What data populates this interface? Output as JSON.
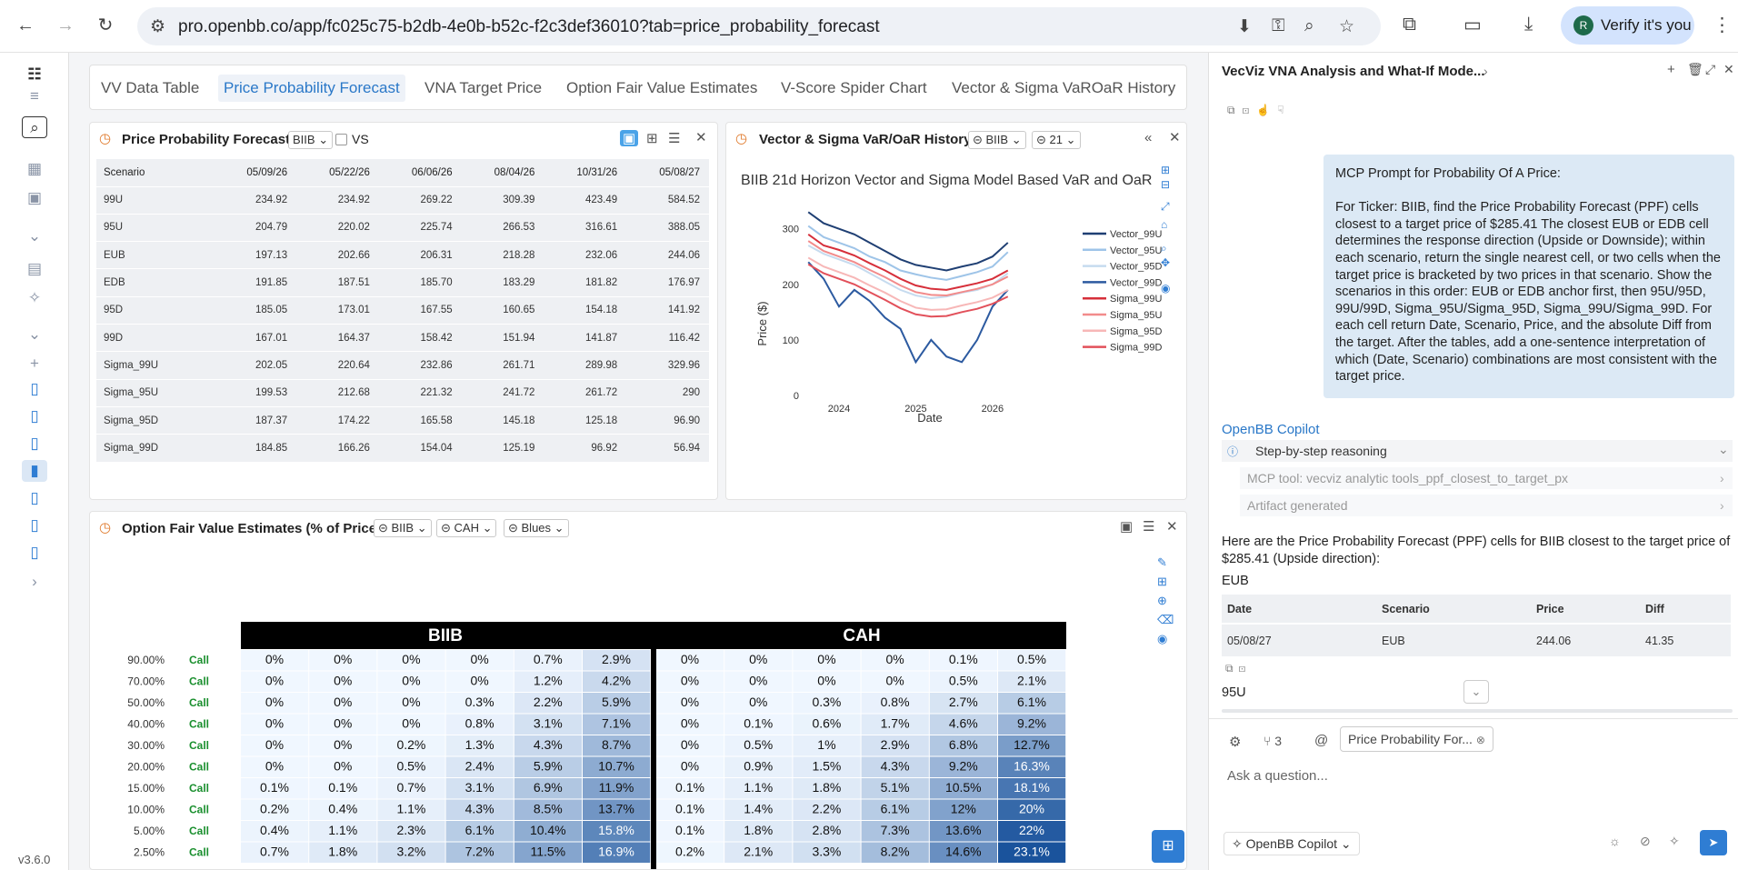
{
  "browser": {
    "url": "pro.openbb.co/app/fc025c75-b2db-4e0b-b52c-f2c3def36010?tab=price_probability_forecast",
    "verify_label": "Verify it's you",
    "avatar_letter": "R"
  },
  "app": {
    "version": "v3.6.0"
  },
  "tabs": [
    {
      "label": "VV Data Table"
    },
    {
      "label": "Price Probability Forecast"
    },
    {
      "label": "VNA Target Price"
    },
    {
      "label": "Option Fair Value Estimates"
    },
    {
      "label": "V-Score Spider Chart"
    },
    {
      "label": "Vector & Sigma VaROaR History"
    }
  ],
  "ppf": {
    "title": "Price Probability Forecast",
    "ticker": "BIIB",
    "vs_label": "VS",
    "columns": [
      "Scenario",
      "05/09/26",
      "05/22/26",
      "06/06/26",
      "08/04/26",
      "10/31/26",
      "05/08/27"
    ],
    "rows": [
      [
        "99U",
        "234.92",
        "234.92",
        "269.22",
        "309.39",
        "423.49",
        "584.52"
      ],
      [
        "95U",
        "204.79",
        "220.02",
        "225.74",
        "266.53",
        "316.61",
        "388.05"
      ],
      [
        "EUB",
        "197.13",
        "202.66",
        "206.31",
        "218.28",
        "232.06",
        "244.06"
      ],
      [
        "EDB",
        "191.85",
        "187.51",
        "185.70",
        "183.29",
        "181.82",
        "176.97"
      ],
      [
        "95D",
        "185.05",
        "173.01",
        "167.55",
        "160.65",
        "154.18",
        "141.92"
      ],
      [
        "99D",
        "167.01",
        "164.37",
        "158.42",
        "151.94",
        "141.87",
        "116.42"
      ],
      [
        "Sigma_99U",
        "202.05",
        "220.64",
        "232.86",
        "261.71",
        "289.98",
        "329.96"
      ],
      [
        "Sigma_95U",
        "199.53",
        "212.68",
        "221.32",
        "241.72",
        "261.72",
        "290"
      ],
      [
        "Sigma_95D",
        "187.37",
        "174.22",
        "165.58",
        "145.18",
        "125.18",
        "96.90"
      ],
      [
        "Sigma_99D",
        "184.85",
        "166.26",
        "154.04",
        "125.19",
        "96.92",
        "56.94"
      ]
    ]
  },
  "var_panel": {
    "title": "Vector & Sigma VaR/OaR History",
    "ticker": "BIIB",
    "horizon": "21"
  },
  "chart_data": {
    "type": "line",
    "title": "BIIB 21d Horizon Vector and Sigma Model Based VaR and OaR",
    "xlabel": "Date",
    "ylabel": "Price ($)",
    "x_ticks": [
      "2024",
      "2025",
      "2026"
    ],
    "y_ticks": [
      0,
      100,
      200,
      300
    ],
    "ylim": [
      0,
      360
    ],
    "legend_position": "right",
    "x": [
      2023.6,
      2023.8,
      2024.0,
      2024.2,
      2024.4,
      2024.6,
      2024.8,
      2025.0,
      2025.2,
      2025.4,
      2025.6,
      2025.8,
      2026.0,
      2026.2
    ],
    "series": [
      {
        "name": "Vector_99U",
        "color": "#1f3f73",
        "values": [
          330,
          310,
          300,
          290,
          275,
          260,
          245,
          235,
          230,
          225,
          232,
          238,
          250,
          275
        ]
      },
      {
        "name": "Vector_95U",
        "color": "#9ec4e8",
        "values": [
          305,
          285,
          275,
          265,
          250,
          240,
          225,
          218,
          212,
          208,
          215,
          222,
          232,
          258
        ]
      },
      {
        "name": "Vector_95D",
        "color": "#c6dbef",
        "values": [
          270,
          255,
          245,
          235,
          220,
          205,
          190,
          180,
          175,
          178,
          185,
          190,
          200,
          220
        ]
      },
      {
        "name": "Vector_99D",
        "color": "#2c5aa0",
        "values": [
          240,
          210,
          160,
          190,
          170,
          140,
          120,
          60,
          100,
          70,
          60,
          100,
          160,
          190
        ]
      },
      {
        "name": "Sigma_99U",
        "color": "#d62f3a",
        "values": [
          290,
          270,
          262,
          252,
          238,
          225,
          210,
          198,
          192,
          190,
          196,
          202,
          210,
          225
        ]
      },
      {
        "name": "Sigma_95U",
        "color": "#f28b8b",
        "values": [
          278,
          260,
          250,
          240,
          226,
          213,
          198,
          186,
          181,
          180,
          186,
          192,
          200,
          214
        ]
      },
      {
        "name": "Sigma_95D",
        "color": "#f7b7b7",
        "values": [
          248,
          232,
          222,
          212,
          198,
          185,
          170,
          158,
          154,
          155,
          162,
          168,
          176,
          190
        ]
      },
      {
        "name": "Sigma_99D",
        "color": "#e2505a",
        "values": [
          236,
          220,
          210,
          200,
          186,
          172,
          157,
          146,
          142,
          143,
          150,
          156,
          165,
          178
        ]
      }
    ]
  },
  "options": {
    "title": "Option Fair Value Estimates (% of Price)",
    "ticker1": "BIIB",
    "ticker2": "CAH",
    "colormap": "Blues",
    "header1": "BIIB",
    "header2": "CAH",
    "rows": [
      {
        "prob": "90.00%",
        "type": "Call",
        "a": [
          "0%",
          "0%",
          "0%",
          "0%",
          "0.7%",
          "2.9%"
        ],
        "b": [
          "0%",
          "0%",
          "0%",
          "0%",
          "0.1%",
          "0.5%"
        ]
      },
      {
        "prob": "70.00%",
        "type": "Call",
        "a": [
          "0%",
          "0%",
          "0%",
          "0%",
          "1.2%",
          "4.2%"
        ],
        "b": [
          "0%",
          "0%",
          "0%",
          "0%",
          "0.5%",
          "2.1%"
        ]
      },
      {
        "prob": "50.00%",
        "type": "Call",
        "a": [
          "0%",
          "0%",
          "0%",
          "0.3%",
          "2.2%",
          "5.9%"
        ],
        "b": [
          "0%",
          "0%",
          "0.3%",
          "0.8%",
          "2.7%",
          "6.1%"
        ]
      },
      {
        "prob": "40.00%",
        "type": "Call",
        "a": [
          "0%",
          "0%",
          "0%",
          "0.8%",
          "3.1%",
          "7.1%"
        ],
        "b": [
          "0%",
          "0.1%",
          "0.6%",
          "1.7%",
          "4.6%",
          "9.2%"
        ]
      },
      {
        "prob": "30.00%",
        "type": "Call",
        "a": [
          "0%",
          "0%",
          "0.2%",
          "1.3%",
          "4.3%",
          "8.7%"
        ],
        "b": [
          "0%",
          "0.5%",
          "1%",
          "2.9%",
          "6.8%",
          "12.7%"
        ]
      },
      {
        "prob": "20.00%",
        "type": "Call",
        "a": [
          "0%",
          "0%",
          "0.5%",
          "2.4%",
          "5.9%",
          "10.7%"
        ],
        "b": [
          "0%",
          "0.9%",
          "1.5%",
          "4.3%",
          "9.2%",
          "16.3%"
        ]
      },
      {
        "prob": "15.00%",
        "type": "Call",
        "a": [
          "0.1%",
          "0.1%",
          "0.7%",
          "3.1%",
          "6.9%",
          "11.9%"
        ],
        "b": [
          "0.1%",
          "1.1%",
          "1.8%",
          "5.1%",
          "10.5%",
          "18.1%"
        ]
      },
      {
        "prob": "10.00%",
        "type": "Call",
        "a": [
          "0.2%",
          "0.4%",
          "1.1%",
          "4.3%",
          "8.5%",
          "13.7%"
        ],
        "b": [
          "0.1%",
          "1.4%",
          "2.2%",
          "6.1%",
          "12%",
          "20%"
        ]
      },
      {
        "prob": "5.00%",
        "type": "Call",
        "a": [
          "0.4%",
          "1.1%",
          "2.3%",
          "6.1%",
          "10.4%",
          "15.8%"
        ],
        "b": [
          "0.1%",
          "1.8%",
          "2.8%",
          "7.3%",
          "13.6%",
          "22%"
        ]
      },
      {
        "prob": "2.50%",
        "type": "Call",
        "a": [
          "0.7%",
          "1.8%",
          "3.2%",
          "7.2%",
          "11.5%",
          "16.9%"
        ],
        "b": [
          "0.2%",
          "2.1%",
          "3.3%",
          "8.2%",
          "14.6%",
          "23.1%"
        ]
      }
    ]
  },
  "copilot": {
    "title": "VecViz VNA Analysis and What-If Mode...",
    "prompt": "MCP Prompt for Probability Of A Price:\n\nFor Ticker: BIIB, find the Price Probability Forecast (PPF) cells closest to a target price of $285.41 The closest EUB or EDB cell determines the response direction (Upside or Downside); within each scenario, return the single nearest cell, or two cells when the target price is bracketed by two prices in that scenario. Show the scenarios in this order: EUB or EDB anchor first, then 95U/95D, 99U/99D, Sigma_95U/Sigma_95D, Sigma_99U/Sigma_99D. For each cell return Date, Scenario, Price, and the absolute Diff from the target. After the tables, add a one-sentence interpretation of which (Date, Scenario) combinations are most consistent with the target price.",
    "name": "OpenBB Copilot",
    "step_reasoning": "Step-by-step reasoning",
    "step_tool": "MCP tool: vecviz analytic tools_ppf_closest_to_target_px",
    "step_artifact": "Artifact generated",
    "answer": "Here are the Price Probability Forecast (PPF) cells for BIIB closest to the target price of $285.41 (Upside direction):",
    "section1": "EUB",
    "table_headers": [
      "Date",
      "Scenario",
      "Price",
      "Diff"
    ],
    "table_rows": [
      [
        "05/08/27",
        "EUB",
        "244.06",
        "41.35"
      ]
    ],
    "section2": "95U",
    "tools_count": "3",
    "context_chip": "Price Probability For...",
    "ask_placeholder": "Ask a question...",
    "model_label": "OpenBB Copilot"
  }
}
